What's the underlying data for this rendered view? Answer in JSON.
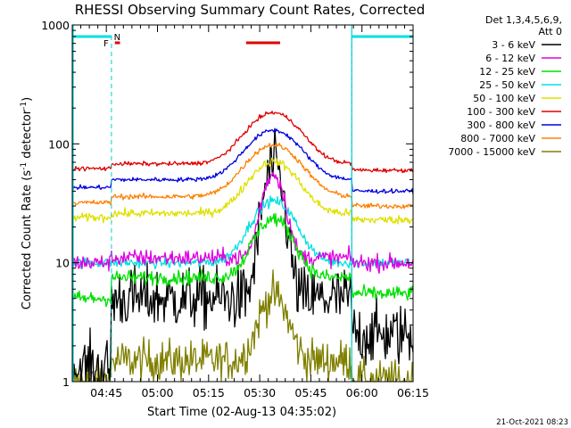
{
  "chart_data": {
    "type": "line",
    "title": "RHESSI Observing Summary Count Rates, Corrected",
    "xlabel": "Start Time (02-Aug-13 04:35:02)",
    "ylabel": "Corrected Count Rate (s",
    "ylabel_sup1": "-1",
    "ylabel_mid": " detector",
    "ylabel_sup2": "-1",
    "ylabel_end": ")",
    "yscale": "log",
    "ylim": [
      1,
      1000
    ],
    "y_tick_values": [
      1,
      10,
      100,
      1000
    ],
    "y_tick_labels": [
      "1",
      "10",
      "100",
      "1000"
    ],
    "xlim_minutes": [
      0,
      100
    ],
    "x_tick_minutes": [
      10,
      25,
      40,
      55,
      70,
      85,
      100
    ],
    "x_tick_labels": [
      "04:45",
      "05:00",
      "05:15",
      "05:30",
      "05:45",
      "06:00",
      "06:15"
    ],
    "legend_header": [
      "Det 1,3,4,5,6,9,",
      "Att 0"
    ],
    "series": [
      {
        "name": "3 - 6 keV",
        "color": "#000000",
        "baseline": 2.5,
        "in_view": 5.0,
        "pre_view": 1.3,
        "peak": 60.0,
        "width": 3.5,
        "noise": 0.3
      },
      {
        "name": "6 - 12 keV",
        "color": "#e000e0",
        "baseline": 10.0,
        "in_view": 11.0,
        "pre_view": 10.0,
        "peak": 45.0,
        "width": 4.0,
        "noise": 0.08
      },
      {
        "name": "12 - 25 keV",
        "color": "#00e000",
        "baseline": 5.5,
        "in_view": 7.5,
        "pre_view": 5.0,
        "peak": 16.0,
        "width": 7.0,
        "noise": 0.07
      },
      {
        "name": "25 - 50 keV",
        "color": "#00e0e0",
        "baseline": 10.0,
        "in_view": 10.0,
        "pre_view": 10.0,
        "peak": 23.0,
        "width": 8.0,
        "noise": 0.05
      },
      {
        "name": "50 - 100 keV",
        "color": "#e0e000",
        "baseline": 23.0,
        "in_view": 26.0,
        "pre_view": 24.0,
        "peak": 45.0,
        "width": 9.0,
        "noise": 0.04
      },
      {
        "name": "100 - 300 keV",
        "color": "#e00000",
        "baseline": 60.0,
        "in_view": 68.0,
        "pre_view": 62.0,
        "peak": 115.0,
        "width": 10.0,
        "noise": 0.02
      },
      {
        "name": "300 - 800 keV",
        "color": "#0000e0",
        "baseline": 40.0,
        "in_view": 50.0,
        "pre_view": 43.0,
        "peak": 80.0,
        "width": 10.0,
        "noise": 0.02
      },
      {
        "name": "800 - 7000 keV",
        "color": "#ff8000",
        "baseline": 30.0,
        "in_view": 36.0,
        "pre_view": 32.0,
        "peak": 62.0,
        "width": 10.0,
        "noise": 0.025
      },
      {
        "name": "7000 - 15000 keV",
        "color": "#808000",
        "baseline": 1.0,
        "in_view": 1.5,
        "pre_view": 1.0,
        "peak": 3.8,
        "width": 5.0,
        "noise": 0.2
      }
    ],
    "flare_peak_minute": 59.0,
    "view_interval_minutes": [
      11.5,
      82.0
    ],
    "flag_labels": [
      "F",
      "N"
    ],
    "flags": [
      {
        "name": "observing-flag",
        "color": "#00e0e0",
        "segments": [
          [
            0,
            11.5
          ],
          [
            82,
            100
          ]
        ]
      },
      {
        "name": "flare-flag",
        "color": "#e00000",
        "segments": [
          [
            12.5,
            14.0
          ],
          [
            51,
            61
          ]
        ]
      }
    ],
    "footer": "21-Oct-2021 08:23"
  }
}
